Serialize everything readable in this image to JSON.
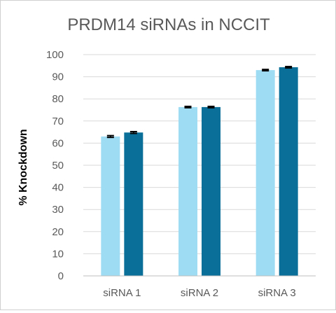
{
  "chart_data": {
    "type": "bar",
    "title": "PRDM14 siRNAs in NCCIT",
    "xlabel": "",
    "ylabel": "% Knockdown",
    "categories": [
      "siRNA 1",
      "siRNA 2",
      "siRNA 3"
    ],
    "series": [
      {
        "values": [
          63,
          76.3,
          93
        ],
        "errors": [
          0.4,
          0.3,
          0.3
        ],
        "color": "#9EDCF4"
      },
      {
        "values": [
          64.8,
          76.3,
          94.3
        ],
        "errors": [
          0.4,
          0.3,
          0.3
        ],
        "color": "#0B7099"
      }
    ],
    "ylim": [
      0,
      100
    ],
    "yticks": [
      "0",
      "10",
      "20",
      "30",
      "40",
      "50",
      "60",
      "70",
      "80",
      "90",
      "100"
    ],
    "grid": true,
    "legend": "none"
  }
}
